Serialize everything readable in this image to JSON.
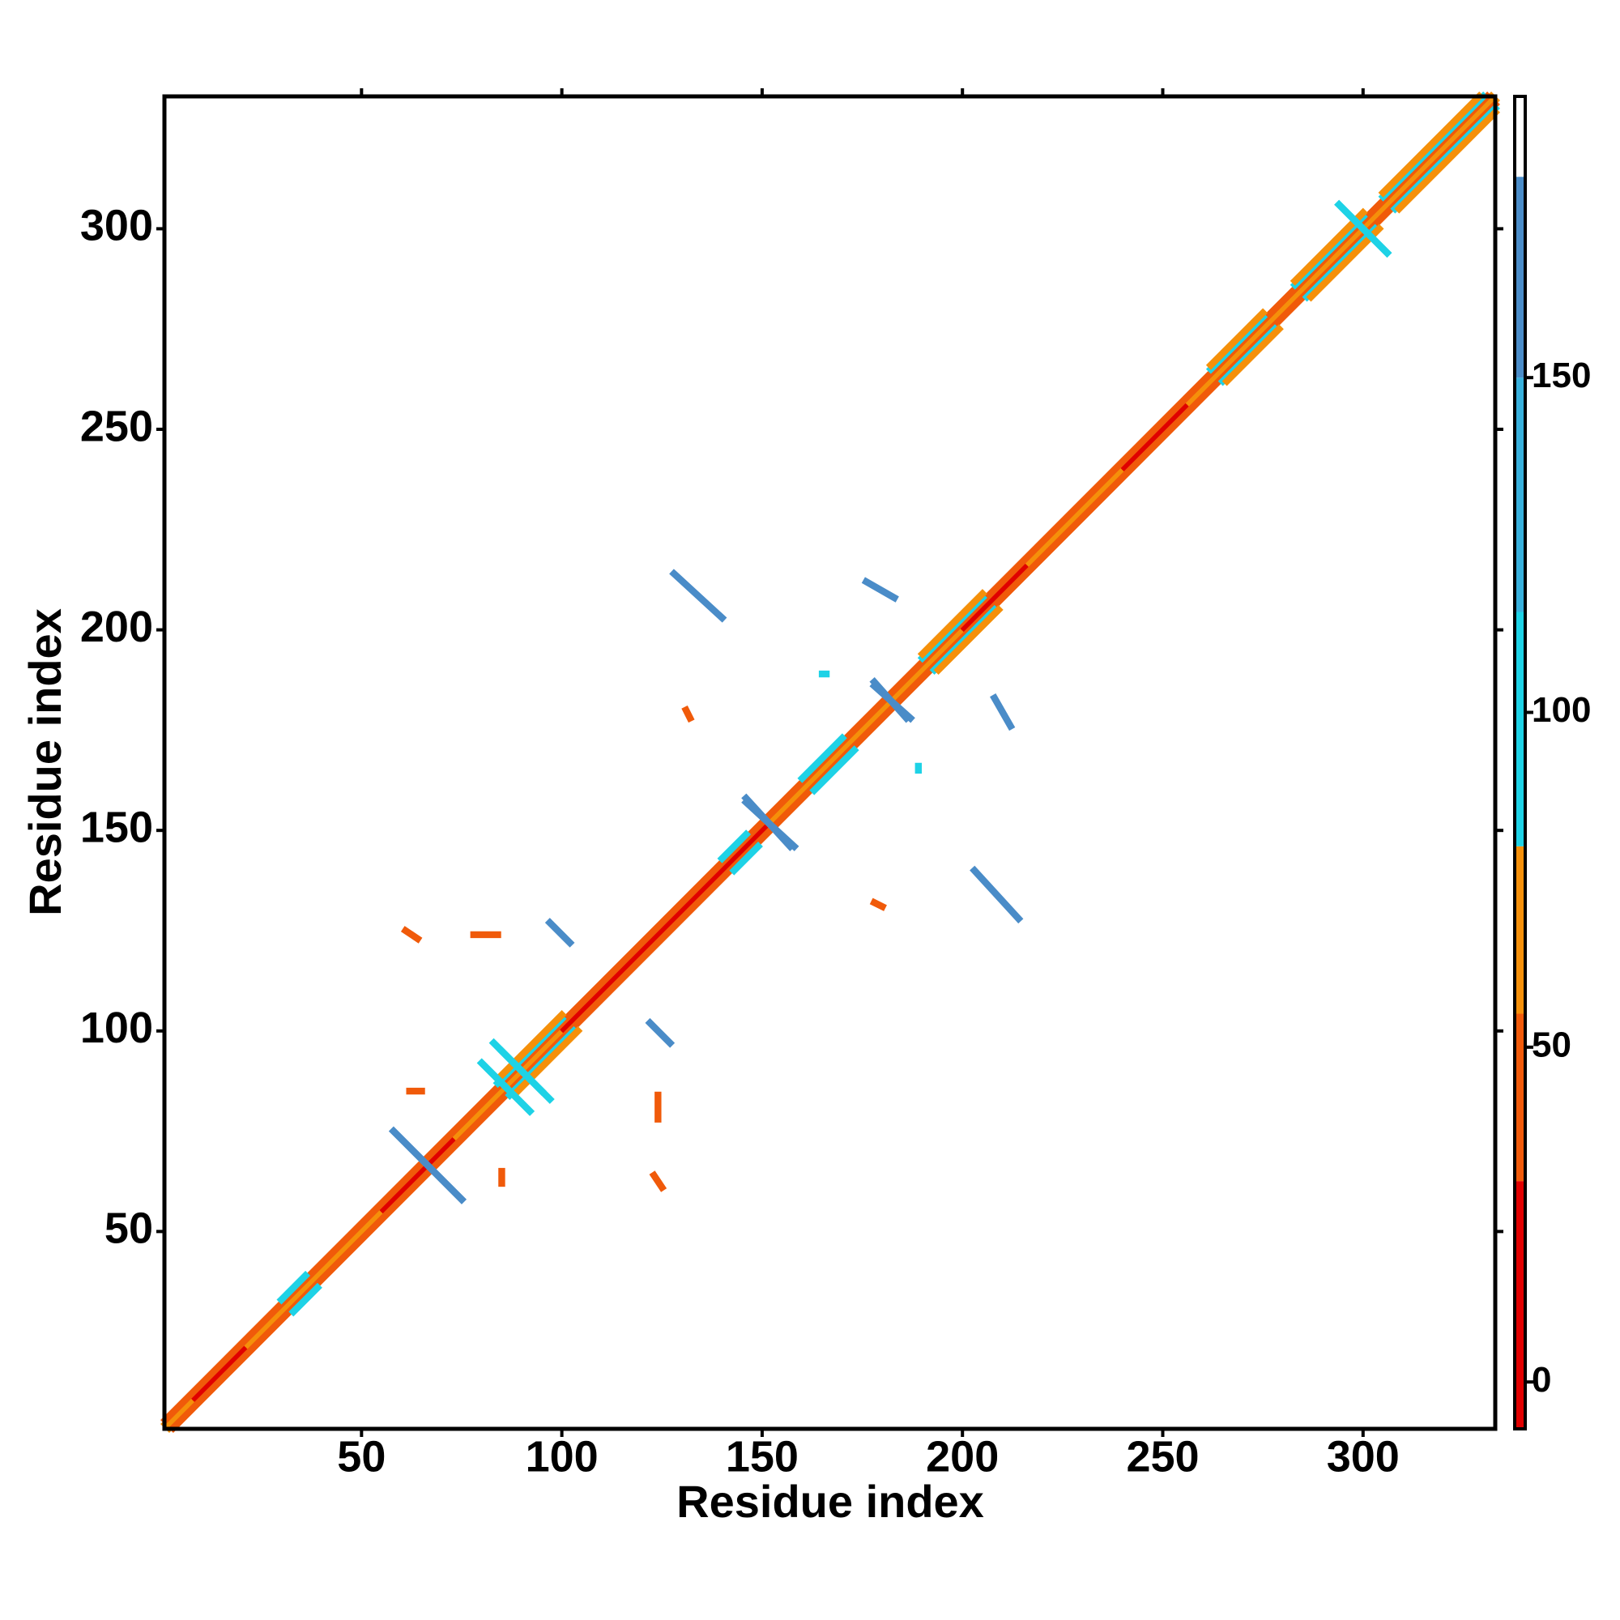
{
  "chart_data": {
    "type": "contact_map",
    "xlabel": "Residue index",
    "ylabel": "Residue index",
    "xlim": [
      0.8,
      333
    ],
    "ylim": [
      0.8,
      333
    ],
    "xticks": [
      50,
      100,
      150,
      200,
      250,
      300
    ],
    "yticks": [
      50,
      100,
      150,
      200,
      250,
      300
    ],
    "symmetric": true,
    "segments": [
      [
        1,
        2,
        332,
        333,
        60
      ],
      [
        8,
        9,
        20,
        21,
        15
      ],
      [
        55,
        56,
        72,
        73,
        15
      ],
      [
        100,
        101,
        150,
        151,
        15
      ],
      [
        200,
        201,
        215,
        216,
        15
      ],
      [
        240,
        241,
        255,
        256,
        15
      ],
      [
        1,
        3,
        331,
        333,
        45
      ],
      [
        30,
        33,
        36,
        39,
        95
      ],
      [
        84,
        87,
        100,
        103,
        95
      ],
      [
        140,
        143,
        146,
        149,
        95
      ],
      [
        160,
        163,
        170,
        173,
        95
      ],
      [
        190,
        193,
        205,
        208,
        95
      ],
      [
        262,
        265,
        275,
        278,
        95
      ],
      [
        283,
        286,
        300,
        303,
        95
      ],
      [
        305,
        308,
        330,
        333,
        95
      ],
      [
        84,
        88,
        100,
        104,
        70
      ],
      [
        190,
        194,
        205,
        209,
        70
      ],
      [
        262,
        266,
        275,
        279,
        70
      ],
      [
        283,
        287,
        300,
        304,
        70
      ],
      [
        305,
        309,
        329,
        333,
        70
      ],
      [
        58,
        75,
        75,
        58,
        165
      ],
      [
        146,
        157,
        158,
        146,
        165
      ],
      [
        178,
        186,
        187,
        178,
        165
      ],
      [
        128,
        214,
        140,
        203,
        165
      ],
      [
        176,
        212,
        183,
        208,
        170
      ],
      [
        97,
        127,
        102,
        122,
        165
      ],
      [
        61,
        125,
        64,
        123,
        40
      ],
      [
        131,
        180,
        132,
        178,
        50
      ],
      [
        78,
        124,
        84,
        124,
        45
      ],
      [
        62,
        85,
        65,
        85,
        50
      ],
      [
        80,
        92,
        92,
        80,
        95
      ],
      [
        83,
        97,
        95,
        85,
        95
      ],
      [
        294,
        306,
        306,
        294,
        95
      ],
      [
        165,
        189,
        166,
        189,
        95
      ]
    ],
    "color_bins": [
      -7,
      30,
      55,
      80,
      115,
      150,
      180,
      192
    ],
    "colors": [
      "#e00000",
      "#f05a0a",
      "#f5900a",
      "#1ed2e6",
      "#38b0dc",
      "#4a8cc8",
      "#ffffff"
    ],
    "colorbar_ticks": [
      0,
      50,
      100,
      150
    ]
  }
}
